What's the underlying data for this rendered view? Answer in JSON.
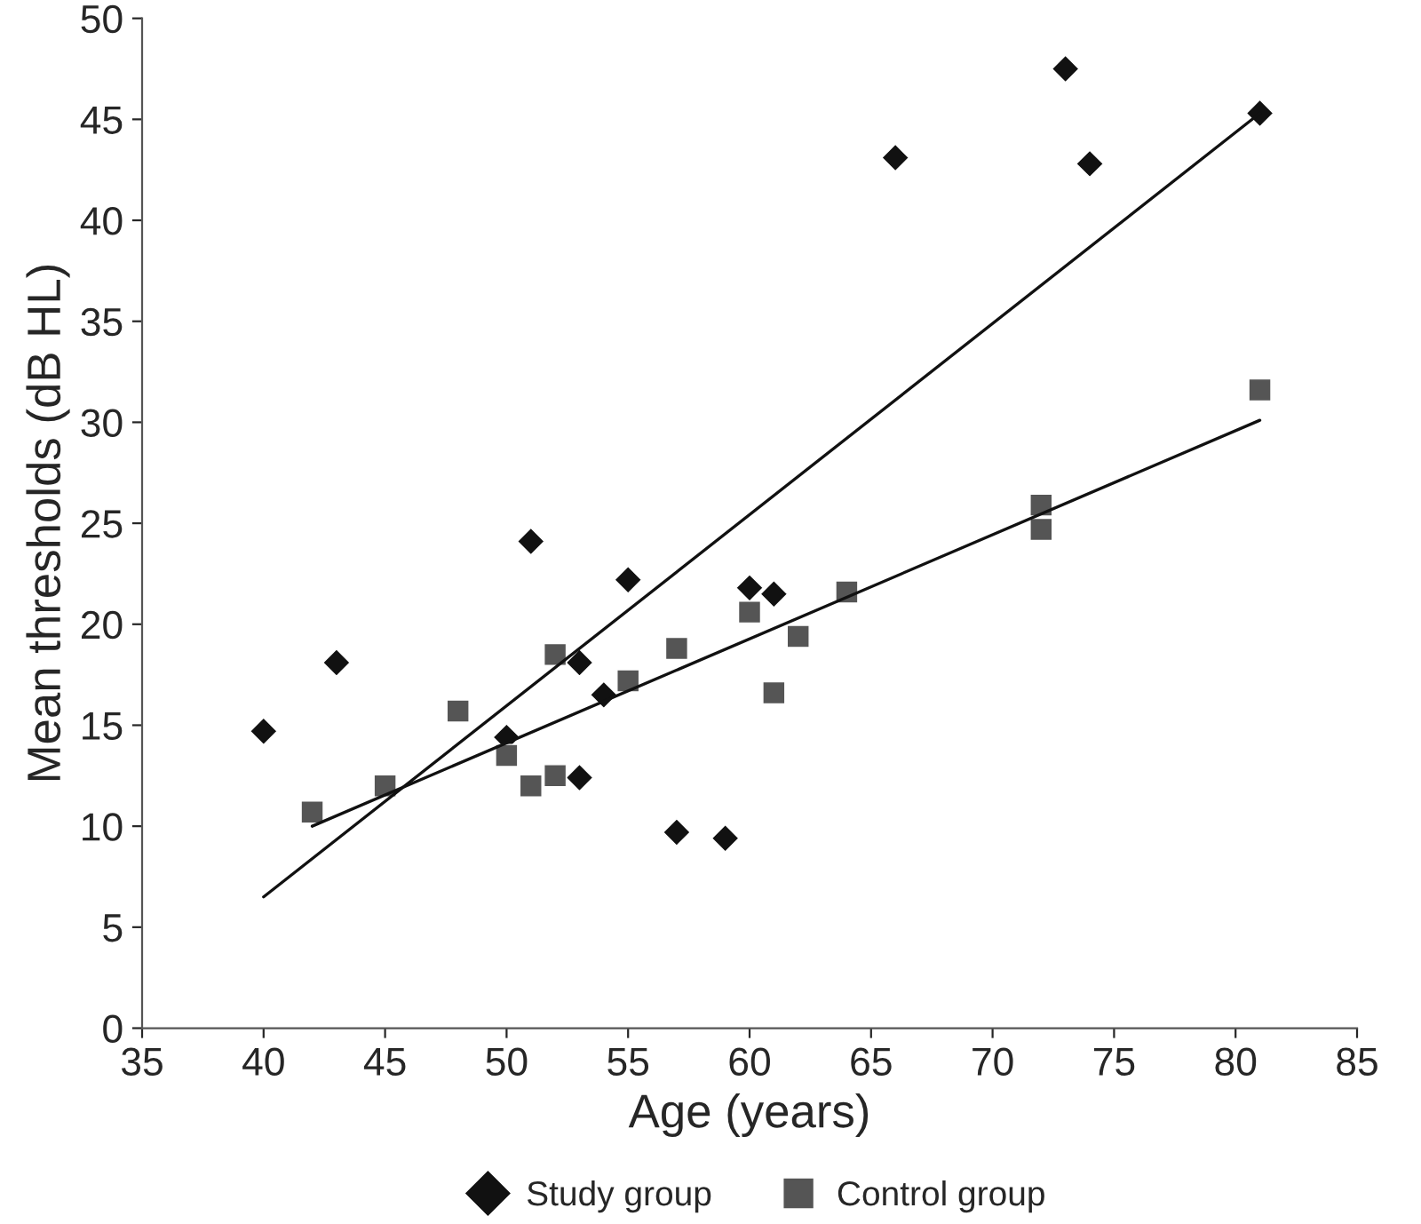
{
  "chart_data": {
    "type": "scatter",
    "xlabel": "Age (years)",
    "ylabel": "Mean thresholds (dB HL)",
    "xlim": [
      35,
      85
    ],
    "xticks": [
      35,
      40,
      45,
      50,
      55,
      60,
      65,
      70,
      75,
      80,
      85
    ],
    "ylim": [
      0,
      50
    ],
    "yticks": [
      0,
      5,
      10,
      15,
      20,
      25,
      30,
      35,
      40,
      45,
      50
    ],
    "grid": false,
    "legend": "bottom",
    "series": [
      {
        "name": "Study group",
        "color": "#111111",
        "marker": "diamond",
        "x": [
          40,
          43,
          50,
          51,
          53,
          53,
          54,
          55,
          57,
          59,
          60,
          61,
          66,
          73,
          74,
          81
        ],
        "values": [
          14.7,
          18.1,
          14.4,
          24.1,
          18.1,
          12.4,
          16.5,
          22.2,
          9.7,
          9.4,
          21.8,
          21.5,
          43.1,
          47.5,
          42.8,
          45.3
        ]
      },
      {
        "name": "Control group",
        "color": "#555555",
        "marker": "square",
        "x": [
          42,
          45,
          48,
          50,
          51,
          52,
          52,
          55,
          57,
          60,
          61,
          62,
          64,
          72,
          72,
          81
        ],
        "values": [
          10.7,
          12.0,
          15.7,
          13.5,
          12.0,
          18.5,
          12.5,
          17.2,
          18.8,
          20.6,
          16.6,
          19.4,
          21.6,
          25.9,
          24.7,
          31.6
        ]
      },
      {
        "type": "line",
        "color": "#111111",
        "marker": "none",
        "line_style": "solid",
        "x": [
          40,
          81
        ],
        "values": [
          6.5,
          45.3
        ]
      },
      {
        "type": "line",
        "color": "#111111",
        "marker": "none",
        "line_style": "solid",
        "x": [
          42,
          81
        ],
        "values": [
          10.0,
          30.1
        ]
      }
    ]
  }
}
